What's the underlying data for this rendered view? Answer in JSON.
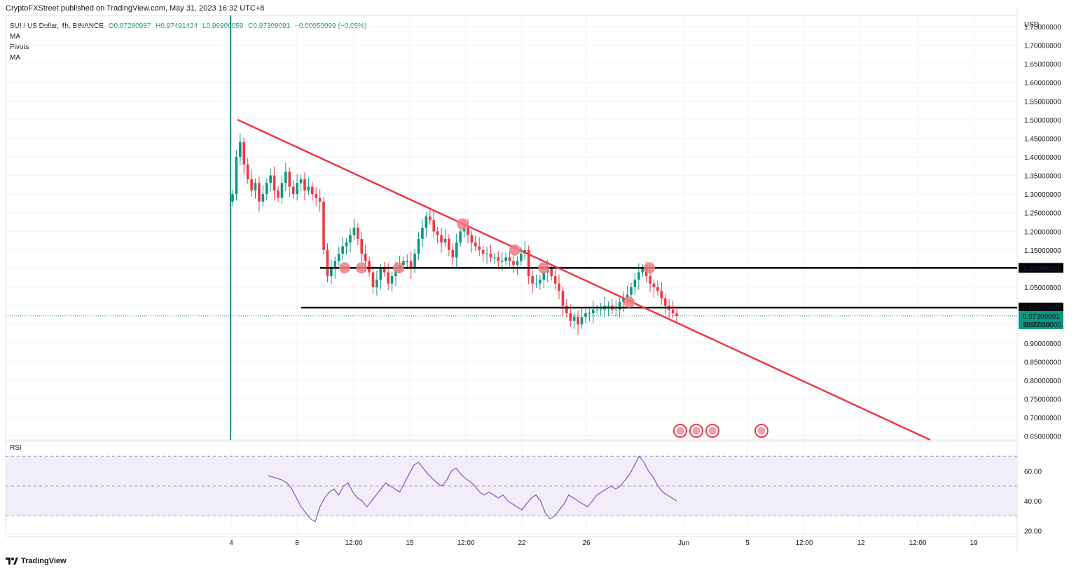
{
  "header": {
    "published": "CryptoFXStreet published on TradingView.com, May 31, 2023 16:32 UTC+8"
  },
  "legend": {
    "symbol": "SUI / US Dollar, 4h, BINANCE",
    "open": "O0.97280987",
    "high": "H0.97491424",
    "low": "L0.96900059",
    "close": "C0.97309091",
    "change": "−0.00050099 (−0.05%)",
    "indicators": [
      "MA",
      "Pivots",
      "MA"
    ]
  },
  "price_axis": {
    "currency": "USD",
    "ticks": [
      "1.75000000",
      "1.70000000",
      "1.65000000",
      "1.60000000",
      "1.55000000",
      "1.50000000",
      "1.45000000",
      "1.40000000",
      "1.35000000",
      "1.30000000",
      "1.25000000",
      "1.20000000",
      "1.15000000",
      "1.10000000",
      "1.05000000",
      "1.00000000",
      "0.95000000",
      "0.90000000",
      "0.85000000",
      "0.80000000",
      "0.75000000",
      "0.70000000",
      "0.65000000"
    ],
    "tick_values": [
      1.75,
      1.7,
      1.65,
      1.6,
      1.55,
      1.5,
      1.45,
      1.4,
      1.35,
      1.3,
      1.25,
      1.2,
      1.15,
      1.1,
      1.05,
      1.0,
      0.95,
      0.9,
      0.85,
      0.8,
      0.75,
      0.7,
      0.65
    ],
    "level_resistance": "1.10198248",
    "level_support": "0.99532440",
    "current_price": "0.97309091",
    "countdown": "03:27:10"
  },
  "time_axis": {
    "ticks": [
      "4",
      "8",
      "12:00",
      "15",
      "12:00",
      "22",
      "26",
      "Jun",
      "5",
      "12:00",
      "12",
      "12:00",
      "19"
    ]
  },
  "rsi": {
    "label": "RSI",
    "ticks": [
      "60.00",
      "40.00",
      "20.00"
    ],
    "tick_values": [
      60,
      40,
      20
    ],
    "bands": [
      70,
      50,
      30
    ]
  },
  "footer": {
    "brand": "TradingView"
  },
  "colors": {
    "up": "#089981",
    "down": "#f23645",
    "trendline": "#f23645",
    "level": "#000000",
    "rsi_line": "#7e57c2",
    "rsi_band": "#ede7f6",
    "marker": "#f07c85"
  },
  "chart_data": {
    "type": "candlestick",
    "timeframe": "4h",
    "price_ylim": [
      0.64,
      1.78
    ],
    "rsi_ylim": [
      18,
      80
    ],
    "close_series": [
      1.3,
      1.4,
      1.44,
      1.38,
      1.34,
      1.31,
      1.33,
      1.28,
      1.3,
      1.33,
      1.35,
      1.31,
      1.29,
      1.33,
      1.36,
      1.32,
      1.3,
      1.33,
      1.34,
      1.31,
      1.32,
      1.3,
      1.29,
      1.28,
      1.15,
      1.08,
      1.1,
      1.12,
      1.14,
      1.16,
      1.17,
      1.19,
      1.21,
      1.18,
      1.14,
      1.12,
      1.09,
      1.05,
      1.07,
      1.1,
      1.09,
      1.06,
      1.08,
      1.1,
      1.11,
      1.12,
      1.12,
      1.1,
      1.14,
      1.18,
      1.21,
      1.24,
      1.23,
      1.2,
      1.19,
      1.17,
      1.18,
      1.15,
      1.13,
      1.17,
      1.2,
      1.21,
      1.19,
      1.17,
      1.16,
      1.15,
      1.14,
      1.14,
      1.13,
      1.13,
      1.12,
      1.12,
      1.13,
      1.12,
      1.11,
      1.12,
      1.14,
      1.15,
      1.08,
      1.06,
      1.06,
      1.07,
      1.09,
      1.1,
      1.08,
      1.06,
      1.04,
      1.0,
      0.98,
      0.96,
      0.97,
      0.95,
      0.97,
      0.98,
      0.98,
      0.99,
      0.99,
      0.99,
      1.0,
      1.0,
      0.99,
      0.99,
      1.01,
      1.02,
      1.03,
      1.05,
      1.07,
      1.09,
      1.1,
      1.08,
      1.06,
      1.05,
      1.04,
      1.02,
      1.0,
      0.99,
      0.98,
      0.973
    ],
    "rsi_series": [
      57,
      56,
      55,
      54,
      52,
      48,
      42,
      36,
      32,
      28,
      26,
      36,
      42,
      46,
      48,
      44,
      50,
      52,
      46,
      42,
      40,
      36,
      40,
      44,
      48,
      52,
      50,
      48,
      46,
      52,
      58,
      64,
      66,
      62,
      58,
      55,
      52,
      50,
      54,
      60,
      62,
      58,
      55,
      53,
      50,
      46,
      44,
      46,
      44,
      42,
      44,
      40,
      38,
      36,
      34,
      38,
      42,
      44,
      40,
      32,
      28,
      30,
      34,
      38,
      44,
      42,
      40,
      38,
      36,
      40,
      44,
      46,
      48,
      50,
      48,
      50,
      54,
      58,
      64,
      70,
      66,
      60,
      56,
      50,
      46,
      44,
      42,
      40
    ],
    "resistance": 1.10198248,
    "support": 0.9953244,
    "trendline": {
      "from": [
        1.5
      ],
      "to": [
        0.64
      ]
    },
    "touch_points": 9
  }
}
